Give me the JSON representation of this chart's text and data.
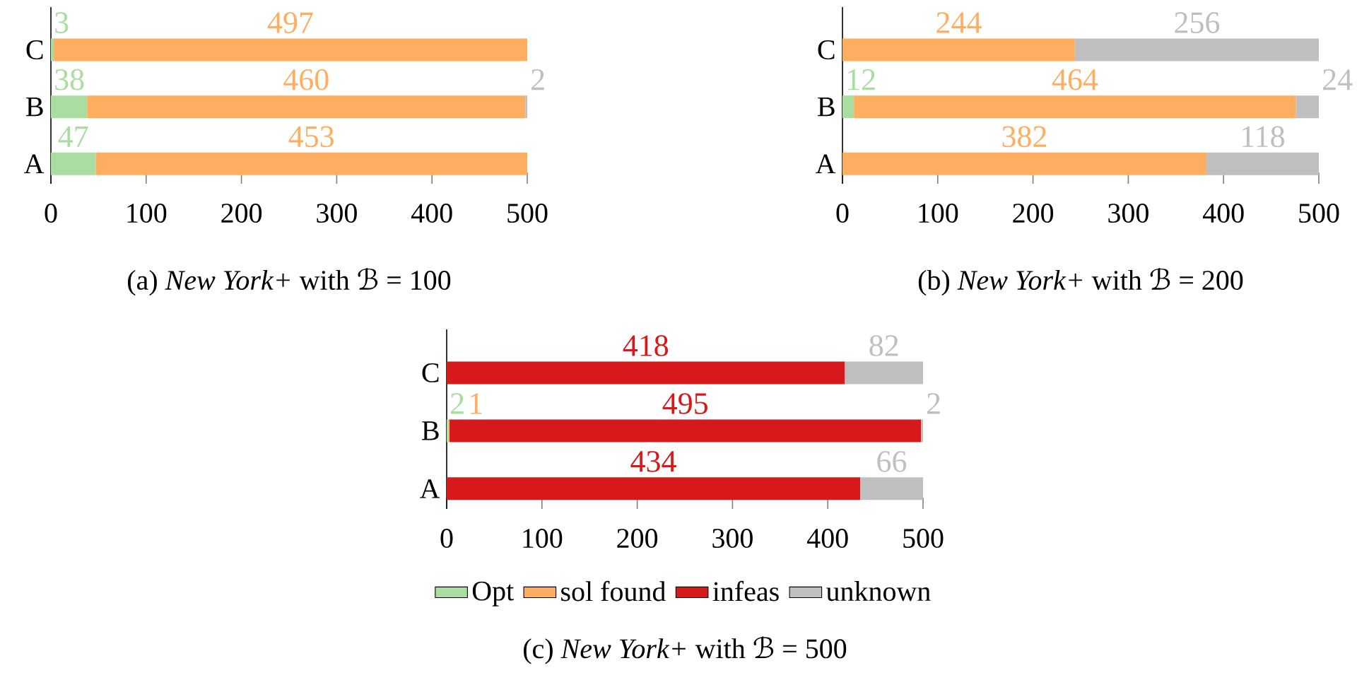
{
  "chart_data": [
    {
      "type": "bar",
      "orientation": "horizontal",
      "stacked": true,
      "data_labels": true,
      "title": "(a) *New York+* with ℬ = 100",
      "categories": [
        "C",
        "B",
        "A"
      ],
      "xlim": [
        0,
        500
      ],
      "xticks": [
        0,
        100,
        200,
        300,
        400,
        500
      ],
      "series": [
        {
          "color": "#aadda0",
          "values": [
            3,
            38,
            47
          ]
        },
        {
          "color": "#fdae61",
          "values": [
            497,
            460,
            453
          ]
        },
        {
          "color": "#bfbfbf",
          "values": [
            null,
            2,
            null
          ]
        }
      ]
    },
    {
      "type": "bar",
      "orientation": "horizontal",
      "stacked": true,
      "data_labels": true,
      "title": "(b) *New York+* with ℬ = 200",
      "categories": [
        "C",
        "B",
        "A"
      ],
      "xlim": [
        0,
        500
      ],
      "xticks": [
        0,
        100,
        200,
        300,
        400,
        500
      ],
      "series": [
        {
          "color": "#aadda0",
          "values": [
            null,
            12,
            null
          ]
        },
        {
          "color": "#fdae61",
          "values": [
            244,
            464,
            382
          ]
        },
        {
          "color": "#bfbfbf",
          "values": [
            256,
            24,
            118
          ]
        }
      ]
    },
    {
      "type": "bar",
      "orientation": "horizontal",
      "stacked": true,
      "data_labels": true,
      "legend": "bottom",
      "title": "(c) *New York+* with ℬ = 500",
      "categories": [
        "C",
        "B",
        "A"
      ],
      "xlim": [
        0,
        500
      ],
      "xticks": [
        0,
        100,
        200,
        300,
        400,
        500
      ],
      "series": [
        {
          "name": "Opt",
          "color": "#aadda0",
          "values": [
            null,
            2,
            null
          ]
        },
        {
          "name": "sol found",
          "color": "#fdae61",
          "values": [
            null,
            1,
            null
          ]
        },
        {
          "name": "infeas",
          "color": "#d7191c",
          "values": [
            418,
            495,
            434
          ]
        },
        {
          "name": "unknown",
          "color": "#bfbfbf",
          "values": [
            82,
            2,
            66
          ]
        }
      ]
    }
  ]
}
